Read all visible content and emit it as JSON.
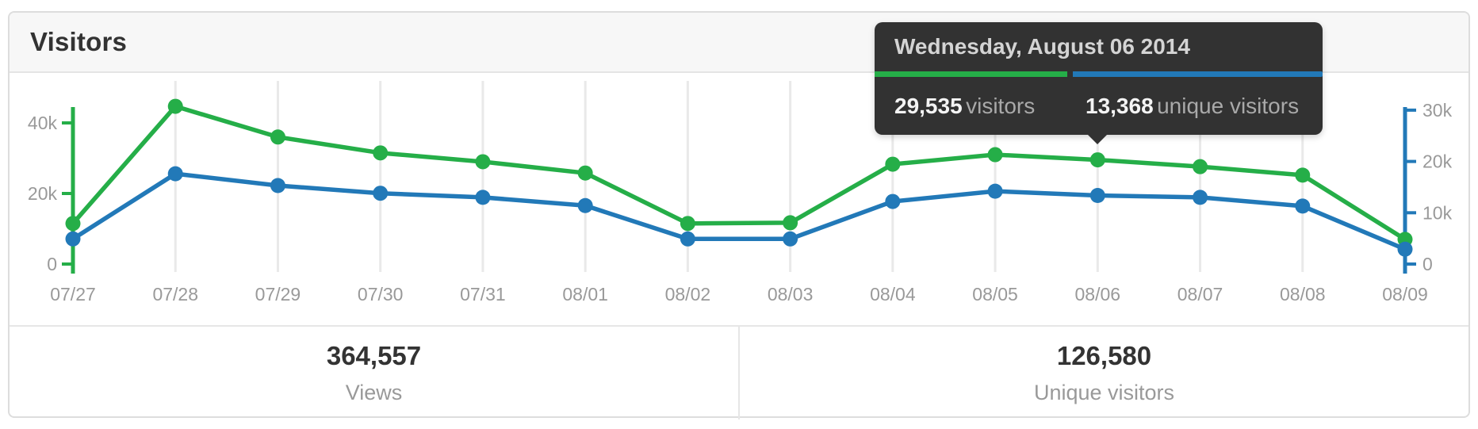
{
  "header": {
    "title": "Visitors"
  },
  "tooltip": {
    "date": "Wednesday, August 06 2014",
    "visitors_value": "29,535",
    "visitors_label": "visitors",
    "unique_value": "13,368",
    "unique_label": "unique visitors"
  },
  "summary": {
    "views": {
      "value": "364,557",
      "label": "Views"
    },
    "unique": {
      "value": "126,580",
      "label": "Unique visitors"
    }
  },
  "colors": {
    "green": "#25ae48",
    "blue": "#2279b8",
    "grid": "#e9e9e9",
    "axis_label": "#999999",
    "tooltip_bg": "#323232"
  },
  "chart_data": {
    "type": "line",
    "title": "Visitors",
    "categories": [
      "07/27",
      "07/28",
      "07/29",
      "07/30",
      "07/31",
      "08/01",
      "08/02",
      "08/03",
      "08/04",
      "08/05",
      "08/06",
      "08/07",
      "08/08",
      "08/09"
    ],
    "series": [
      {
        "name": "visitors",
        "axis": "left",
        "color_key": "green",
        "values": [
          11500,
          44700,
          36000,
          31500,
          29000,
          25800,
          11500,
          11700,
          28300,
          31000,
          29535,
          27600,
          25200,
          7000
        ]
      },
      {
        "name": "unique visitors",
        "axis": "right",
        "color_key": "blue",
        "values": [
          4900,
          17600,
          15300,
          13800,
          13000,
          11400,
          4900,
          4900,
          12200,
          14200,
          13368,
          13000,
          11300,
          2900
        ]
      }
    ],
    "left_axis": {
      "ticks": [
        {
          "value": 0,
          "label": "0"
        },
        {
          "value": 20000,
          "label": "20k"
        },
        {
          "value": 40000,
          "label": "40k"
        }
      ],
      "range": [
        0,
        45000
      ]
    },
    "right_axis": {
      "ticks": [
        {
          "value": 0,
          "label": "0"
        },
        {
          "value": 10000,
          "label": "10k"
        },
        {
          "value": 20000,
          "label": "20k"
        },
        {
          "value": 30000,
          "label": "30k"
        }
      ],
      "range": [
        0,
        31000
      ]
    },
    "grid": "vertical",
    "legend": "none",
    "highlight": {
      "index": 10,
      "category": "08/06"
    }
  }
}
